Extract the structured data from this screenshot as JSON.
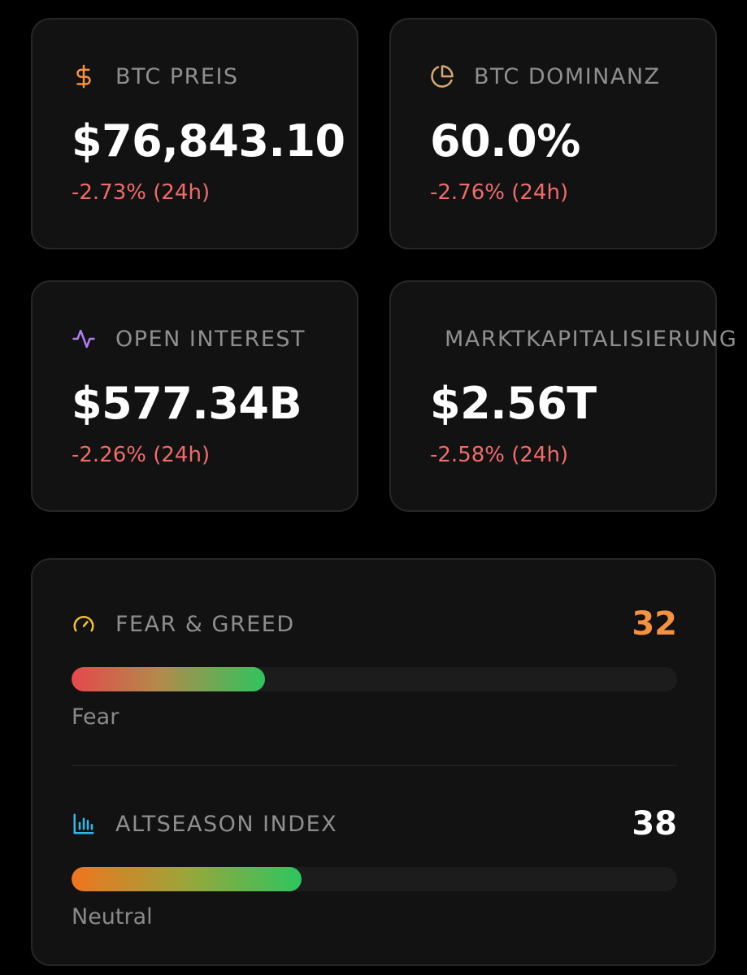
{
  "stats": [
    {
      "label": "BTC PREIS",
      "value": "$76,843.10",
      "change": "-2.73% (24h)",
      "icon": "dollar-icon"
    },
    {
      "label": "BTC DOMINANZ",
      "value": "60.0%",
      "change": "-2.76% (24h)",
      "icon": "pie-chart-icon"
    },
    {
      "label": "OPEN INTEREST",
      "value": "$577.34B",
      "change": "-2.26% (24h)",
      "icon": "activity-pulse-icon"
    },
    {
      "label": "MARKTKAPITALISIERUNG",
      "value": "$2.56T",
      "change": "-2.58% (24h)",
      "icon": ""
    }
  ],
  "indices": {
    "fear_greed": {
      "label": "FEAR & GREED",
      "value": "32",
      "level": 0.32,
      "status": "Fear",
      "icon": "gauge-icon",
      "value_color": "#f5923e"
    },
    "altseason": {
      "label": "ALTSEASON INDEX",
      "value": "38",
      "level": 0.38,
      "status": "Neutral",
      "icon": "bar-chart-icon",
      "value_color": "#ffffff"
    }
  },
  "colors": {
    "background": "#000000",
    "card": "#121212",
    "negative": "#f06b6b",
    "dollar_icon": "#f5923e",
    "pie_icon": "#d7a86e",
    "pulse_icon": "#b07cf0",
    "gauge_icon": "#f5c32e",
    "bar_icon": "#35b8e6"
  }
}
